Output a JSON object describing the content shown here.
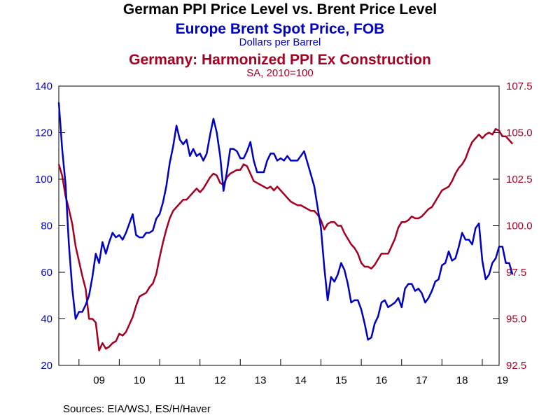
{
  "chart_data": {
    "type": "line",
    "title": "German PPI Price Level vs. Brent Price Level",
    "source": "Sources:  EIA/WSJ, ES/H/Haver",
    "colors": {
      "brent": "#0000c0",
      "ppi": "#a50021",
      "axis": "#000000"
    },
    "grid": false,
    "x_ticks": [
      "09",
      "10",
      "11",
      "12",
      "13",
      "14",
      "15",
      "16",
      "17",
      "18",
      "19"
    ],
    "x_range": [
      "2008-07",
      "2019-06"
    ],
    "left_axis": {
      "min": 20,
      "max": 140,
      "ticks": [
        "20",
        "40",
        "60",
        "80",
        "100",
        "120",
        "140"
      ]
    },
    "right_axis": {
      "min": 92.5,
      "max": 107.5,
      "ticks": [
        "92.5",
        "95.0",
        "97.5",
        "100.0",
        "102.5",
        "105.0",
        "107.5"
      ]
    },
    "series": [
      {
        "name": "Europe Brent Spot Price, FOB",
        "unit": "Dollars per Barrel",
        "axis": "left",
        "start": "2008-07",
        "values": [
          133,
          113,
          98,
          72,
          53,
          40,
          43,
          43,
          46,
          50,
          58,
          68,
          64,
          73,
          68,
          73,
          77,
          75,
          76,
          74,
          77,
          81,
          85,
          76,
          75,
          75,
          77,
          77,
          78,
          83,
          85,
          90,
          97,
          107,
          114,
          123,
          117,
          115,
          117,
          110,
          113,
          110,
          111,
          108,
          111,
          119,
          126,
          120,
          110,
          95,
          103,
          113,
          113,
          112,
          109,
          109,
          112,
          116,
          108,
          103,
          103,
          103,
          108,
          111,
          111,
          108,
          109,
          108,
          110,
          108,
          108,
          108,
          110,
          112,
          107,
          102,
          97,
          88,
          79,
          62,
          48,
          58,
          56,
          59,
          64,
          61,
          55,
          47,
          48,
          48,
          44,
          38,
          31,
          32,
          38,
          41,
          47,
          48,
          45,
          46,
          47,
          49,
          45,
          53,
          55,
          55,
          52,
          53,
          51,
          47,
          49,
          52,
          56,
          57,
          63,
          64,
          69,
          65,
          66,
          71,
          77,
          74,
          74,
          72,
          79,
          81,
          65,
          57,
          59,
          64,
          66,
          71,
          71,
          64,
          64,
          59
        ]
      },
      {
        "name": "Germany: Harmonized PPI Ex Construction",
        "unit": "SA, 2010=100",
        "axis": "right",
        "start": "2008-07",
        "values": [
          103.3,
          102.7,
          101.6,
          100.9,
          100.1,
          98.9,
          98.1,
          97.3,
          96.6,
          95.0,
          95.0,
          94.8,
          93.3,
          93.7,
          93.4,
          93.5,
          93.7,
          93.8,
          94.2,
          94.1,
          94.3,
          94.7,
          95.1,
          95.7,
          96.2,
          96.3,
          96.4,
          96.7,
          96.9,
          97.4,
          98.3,
          99.1,
          99.8,
          100.4,
          100.8,
          101.0,
          101.2,
          101.4,
          101.4,
          101.6,
          101.8,
          102.0,
          101.8,
          102.0,
          102.3,
          102.6,
          102.8,
          102.7,
          102.3,
          102.2,
          102.6,
          102.8,
          102.9,
          103.0,
          103.0,
          103.3,
          103.2,
          102.8,
          102.4,
          102.3,
          102.2,
          102.1,
          102.0,
          102.1,
          101.9,
          102.1,
          101.9,
          101.7,
          101.5,
          101.3,
          101.2,
          101.1,
          101.1,
          101.0,
          100.9,
          100.8,
          100.8,
          100.6,
          100.3,
          99.8,
          100.1,
          100.2,
          100.2,
          100.0,
          100.0,
          99.6,
          99.3,
          99.0,
          98.8,
          98.5,
          98.0,
          97.8,
          97.8,
          97.7,
          97.9,
          98.2,
          98.5,
          98.5,
          98.5,
          98.9,
          99.3,
          99.9,
          100.2,
          100.2,
          100.3,
          100.5,
          100.4,
          100.4,
          100.5,
          100.7,
          100.9,
          101.0,
          101.3,
          101.6,
          101.9,
          102.0,
          102.1,
          102.4,
          102.8,
          103.1,
          103.3,
          103.6,
          104.1,
          104.5,
          104.7,
          104.9,
          104.7,
          104.9,
          105.0,
          104.9,
          105.2,
          105.1,
          104.8,
          104.8,
          104.6,
          104.4
        ]
      }
    ]
  }
}
